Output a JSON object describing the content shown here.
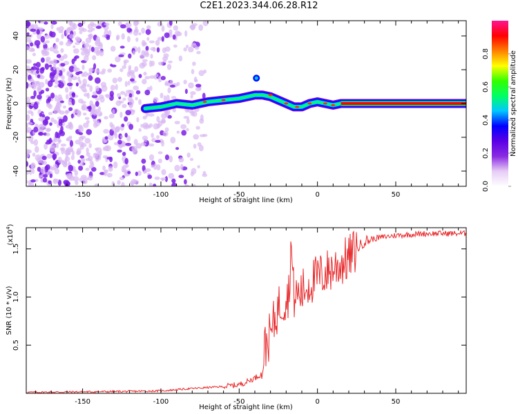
{
  "title": "C2E1.2023.344.06.28.R12",
  "chart_data": [
    {
      "type": "heatmap",
      "xlabel": "Height of straight line (km)",
      "ylabel": "Frequency (Hz)",
      "xlim": [
        -186,
        95
      ],
      "ylim": [
        -49,
        49
      ],
      "xticks": [
        -150,
        -100,
        -50,
        0,
        50
      ],
      "yticks": [
        -40,
        -20,
        0,
        20,
        40
      ],
      "colorbar": {
        "label": "Normalized spectral amplitude",
        "range": [
          0,
          1
        ],
        "ticks": [
          "0.0",
          "0.2",
          "0.4",
          "0.6",
          "0.8"
        ],
        "colors": [
          "#ffffff",
          "#e6ccf5",
          "#8a2be2",
          "#5a00e6",
          "#0000ff",
          "#00c8ff",
          "#00ff64",
          "#32ff00",
          "#ffff00",
          "#ff8000",
          "#ff0000",
          "#ff1493"
        ]
      },
      "ridge": {
        "x": [
          -110,
          -100,
          -90,
          -80,
          -70,
          -60,
          -50,
          -40,
          -35,
          -30,
          -25,
          -20,
          -15,
          -10,
          -5,
          0,
          5,
          10,
          15,
          95
        ],
        "y": [
          -3,
          -2,
          0,
          -1,
          1,
          2,
          3,
          5,
          5,
          4,
          2,
          0,
          -2,
          -2,
          0,
          1,
          0,
          -1,
          0,
          0
        ]
      },
      "blob": {
        "x": -39,
        "y": 15
      }
    },
    {
      "type": "line",
      "xlabel": "Height of straight line (km)",
      "ylabel": "SNR (10 * v/v)",
      "yscale_label": "(x10",
      "yscale_exp": "4",
      "xlim": [
        -186,
        95
      ],
      "ylim": [
        0,
        1.72
      ],
      "xticks": [
        -150,
        -100,
        -50,
        0,
        50
      ],
      "yticks": [
        0.5,
        1.0,
        1.5
      ],
      "ytick_labels": [
        "0.5",
        "1.0",
        "1.5"
      ],
      "color": "#e8282a",
      "series": [
        {
          "x": [
            -186,
            -150,
            -120,
            -100,
            -80,
            -60,
            -50,
            -45,
            -40,
            -36,
            -34,
            -32,
            -30,
            -28,
            -25,
            -22,
            -20,
            -18,
            -17,
            -15,
            -10,
            -5,
            0,
            5,
            10,
            15,
            20,
            25,
            30,
            40,
            50,
            60,
            70,
            80,
            95
          ],
          "y": [
            0.01,
            0.015,
            0.02,
            0.025,
            0.05,
            0.07,
            0.09,
            0.12,
            0.16,
            0.2,
            0.45,
            0.55,
            0.6,
            0.72,
            0.9,
            0.95,
            1.0,
            1.05,
            1.57,
            1.0,
            1.05,
            1.15,
            1.2,
            1.25,
            1.3,
            1.35,
            1.4,
            1.5,
            1.58,
            1.62,
            1.64,
            1.65,
            1.66,
            1.66,
            1.66
          ]
        }
      ]
    }
  ]
}
